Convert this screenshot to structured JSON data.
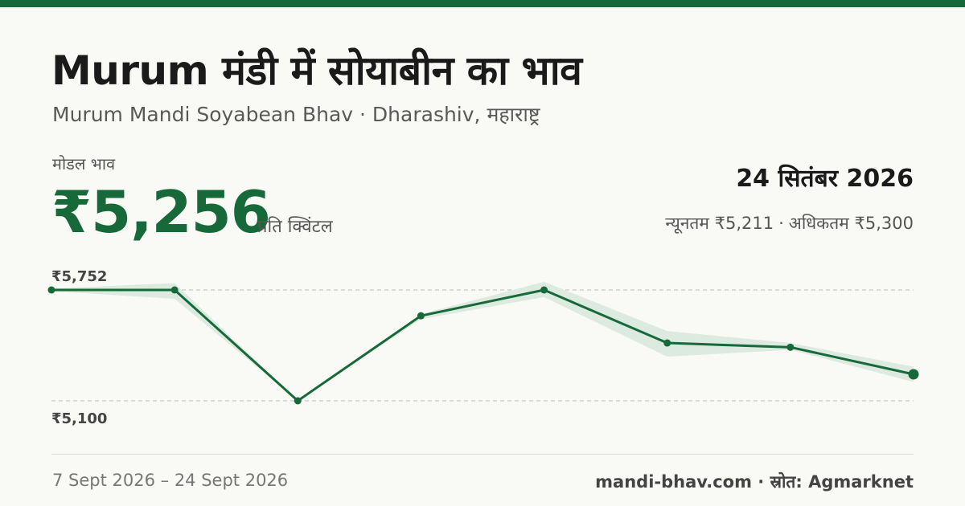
{
  "title": "Murum मंडी में सोयाबीन का भाव",
  "subtitle": "Murum Mandi Soyabean Bhav · Dharashiv, महाराष्ट्र",
  "model_label": "मोडल भाव",
  "model_price": "₹5,256",
  "unit": "प्रति क्विंटल",
  "date": "24 सितंबर 2026",
  "min_label": "न्यूनतम ₹5,211",
  "max_label": "अधिकतम ₹5,300",
  "date_range": "7 Sept 2026 – 24 Sept 2026",
  "footer_source": "mandi-bhav.com · स्रोत: Agmarknet",
  "colors": {
    "accent": "#17693a",
    "band": "#dceadf",
    "grid": "#bdbdb6"
  },
  "chart_data": {
    "type": "line",
    "title": "",
    "xlabel": "",
    "ylabel": "",
    "ylim": [
      5100,
      5752
    ],
    "y_tick_labels": [
      "₹5,752",
      "₹5,100"
    ],
    "grid": true,
    "series": [
      {
        "values": [
          5752,
          5752,
          5100,
          5600,
          5752,
          5440,
          5415,
          5256
        ]
      }
    ],
    "band": {
      "upper": [
        5760,
        5792,
        5100,
        5610,
        5800,
        5510,
        5440,
        5300
      ],
      "lower": [
        5745,
        5700,
        5100,
        5580,
        5710,
        5360,
        5400,
        5211
      ]
    }
  }
}
